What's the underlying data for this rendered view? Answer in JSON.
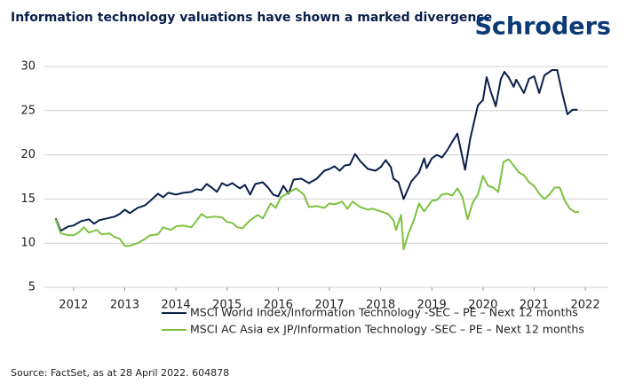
{
  "chart_data": {
    "type": "line",
    "title": "Information technology valuations have shown a marked divergence",
    "brand": "Schroders",
    "source": "Source: FactSet, as at 28 April 2022. 604878",
    "xlim": [
      2011.43,
      2022.45
    ],
    "xticks": [
      2012,
      2013,
      2014,
      2015,
      2016,
      2017,
      2018,
      2019,
      2020,
      2021,
      2022
    ],
    "ylim": [
      5,
      30
    ],
    "yticks": [
      5,
      10,
      15,
      20,
      25,
      30
    ],
    "grid": true,
    "series": [
      {
        "name": "MSCI World Index/Information Technology -SEC – PE – Next 12 months",
        "color": "#0b1f4b",
        "x": [
          2011.65,
          2011.75,
          2011.9,
          2012.0,
          2012.15,
          2012.3,
          2012.4,
          2012.5,
          2012.65,
          2012.8,
          2012.9,
          2013.0,
          2013.1,
          2013.25,
          2013.4,
          2013.5,
          2013.65,
          2013.75,
          2013.85,
          2014.0,
          2014.15,
          2014.3,
          2014.4,
          2014.5,
          2014.6,
          2014.7,
          2014.8,
          2014.9,
          2015.0,
          2015.1,
          2015.25,
          2015.35,
          2015.45,
          2015.55,
          2015.7,
          2015.8,
          2015.9,
          2016.0,
          2016.1,
          2016.2,
          2016.3,
          2016.45,
          2016.6,
          2016.75,
          2016.9,
          2017.0,
          2017.1,
          2017.2,
          2017.3,
          2017.4,
          2017.5,
          2017.6,
          2017.75,
          2017.9,
          2018.0,
          2018.1,
          2018.2,
          2018.25,
          2018.35,
          2018.45,
          2018.6,
          2018.75,
          2018.85,
          2018.9,
          2019.0,
          2019.1,
          2019.2,
          2019.3,
          2019.4,
          2019.5,
          2019.65,
          2019.75,
          2019.9,
          2020.0,
          2020.07,
          2020.15,
          2020.25,
          2020.35,
          2020.42,
          2020.5,
          2020.6,
          2020.65,
          2020.8,
          2020.9,
          2021.0,
          2021.1,
          2021.2,
          2021.35,
          2021.45,
          2021.55,
          2021.65,
          2021.75,
          2021.85
        ],
        "values": [
          12.8,
          11.4,
          11.9,
          12.0,
          12.5,
          12.7,
          12.2,
          12.6,
          12.8,
          13.0,
          13.3,
          13.8,
          13.4,
          14.0,
          14.3,
          14.8,
          15.6,
          15.2,
          15.7,
          15.5,
          15.7,
          15.8,
          16.1,
          16.0,
          16.7,
          16.3,
          15.8,
          16.8,
          16.5,
          16.8,
          16.2,
          16.6,
          15.5,
          16.7,
          16.9,
          16.3,
          15.5,
          15.3,
          16.5,
          15.6,
          17.2,
          17.3,
          16.8,
          17.3,
          18.2,
          18.4,
          18.7,
          18.2,
          18.8,
          18.9,
          20.1,
          19.3,
          18.4,
          18.2,
          18.6,
          19.4,
          18.6,
          17.3,
          16.9,
          15.0,
          17.0,
          18.0,
          19.6,
          18.5,
          19.6,
          20.0,
          19.7,
          20.5,
          21.5,
          22.4,
          18.3,
          21.8,
          25.6,
          26.2,
          28.8,
          27.2,
          25.5,
          28.6,
          29.4,
          28.8,
          27.7,
          28.5,
          27.0,
          28.6,
          28.9,
          27.0,
          29.0,
          29.6,
          29.6,
          27.0,
          24.6,
          25.1,
          25.1
        ]
      },
      {
        "name": "MSCI AC Asia ex JP/Information Technology -SEC – PE – Next 12 months",
        "color": "#7dc242",
        "x": [
          2011.65,
          2011.75,
          2011.9,
          2012.0,
          2012.1,
          2012.2,
          2012.3,
          2012.45,
          2012.55,
          2012.7,
          2012.8,
          2012.9,
          2013.0,
          2013.1,
          2013.25,
          2013.4,
          2013.5,
          2013.65,
          2013.75,
          2013.9,
          2014.0,
          2014.15,
          2014.3,
          2014.4,
          2014.5,
          2014.6,
          2014.75,
          2014.9,
          2015.0,
          2015.1,
          2015.2,
          2015.3,
          2015.45,
          2015.6,
          2015.7,
          2015.85,
          2015.95,
          2016.05,
          2016.2,
          2016.35,
          2016.5,
          2016.6,
          2016.75,
          2016.9,
          2017.0,
          2017.1,
          2017.25,
          2017.35,
          2017.45,
          2017.6,
          2017.75,
          2017.85,
          2018.0,
          2018.15,
          2018.25,
          2018.3,
          2018.4,
          2018.45,
          2018.55,
          2018.65,
          2018.75,
          2018.85,
          2019.0,
          2019.1,
          2019.2,
          2019.3,
          2019.4,
          2019.5,
          2019.6,
          2019.7,
          2019.8,
          2019.9,
          2020.0,
          2020.1,
          2020.2,
          2020.3,
          2020.4,
          2020.5,
          2020.6,
          2020.7,
          2020.8,
          2020.9,
          2021.0,
          2021.1,
          2021.2,
          2021.3,
          2021.4,
          2021.5,
          2021.6,
          2021.7,
          2021.8,
          2021.88
        ],
        "values": [
          12.7,
          11.1,
          10.9,
          10.9,
          11.2,
          11.8,
          11.2,
          11.5,
          11.0,
          11.1,
          10.7,
          10.5,
          9.7,
          9.7,
          10.0,
          10.5,
          10.9,
          11.0,
          11.8,
          11.5,
          11.9,
          12.0,
          11.8,
          12.5,
          13.3,
          12.9,
          13.0,
          12.9,
          12.4,
          12.3,
          11.8,
          11.7,
          12.6,
          13.2,
          12.8,
          14.5,
          14.0,
          15.2,
          15.7,
          16.2,
          15.5,
          14.1,
          14.2,
          14.0,
          14.5,
          14.4,
          14.7,
          13.9,
          14.7,
          14.1,
          13.8,
          13.9,
          13.6,
          13.3,
          12.6,
          11.5,
          13.2,
          9.3,
          11.2,
          12.6,
          14.5,
          13.6,
          14.8,
          14.9,
          15.5,
          15.6,
          15.4,
          16.2,
          15.2,
          12.7,
          14.6,
          15.5,
          17.6,
          16.5,
          16.3,
          15.8,
          19.2,
          19.5,
          18.8,
          18.0,
          17.7,
          16.9,
          16.5,
          15.6,
          15.0,
          15.5,
          16.3,
          16.3,
          14.8,
          13.9,
          13.5,
          13.5
        ]
      }
    ]
  }
}
